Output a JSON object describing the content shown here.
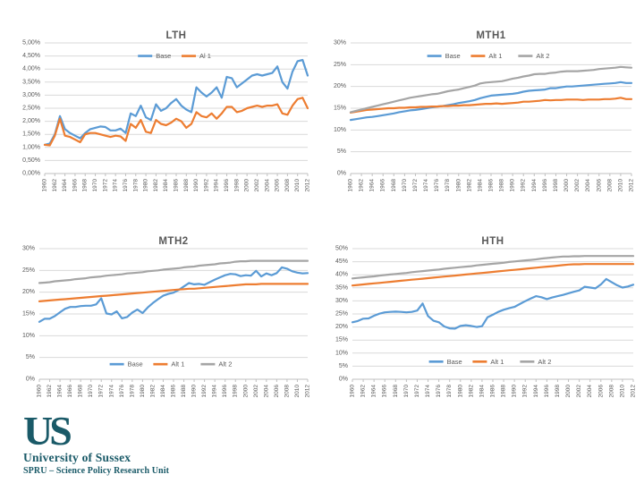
{
  "slide": {
    "background": "#ffffff"
  },
  "colors": {
    "series_base": "#5B9BD5",
    "series_alt1": "#ED7D31",
    "series_alt2": "#A5A5A5",
    "title_text": "#595959",
    "axis_text": "#595959",
    "gridline": "#D9D9D9",
    "axis_line": "#BFBFBF",
    "logo": "#1A5A68"
  },
  "logo": {
    "monogram": "US",
    "institution": "University of Sussex",
    "department": "SPRU – Science Policy Research Unit"
  },
  "chart_data": [
    {
      "id": "lth",
      "type": "line",
      "title": "LTH",
      "x_start": 1960,
      "x_end": 2012,
      "x_tick_labels": [
        "1960",
        "1962",
        "1964",
        "1966",
        "1968",
        "1970",
        "1972",
        "1974",
        "1976",
        "1978",
        "1980",
        "1982",
        "1984",
        "1986",
        "1988",
        "1990",
        "1992",
        "1994",
        "1996",
        "1998",
        "2000",
        "2002",
        "2004",
        "2006",
        "2008",
        "2010",
        "2012"
      ],
      "y_tick_labels": [
        "5,00%",
        "4,50%",
        "4,00%",
        "3,50%",
        "3,00%",
        "2,50%",
        "2,00%",
        "1,50%",
        "1,00%",
        "0,50%",
        "0,00%"
      ],
      "ylim": [
        0,
        5
      ],
      "grid": true,
      "legend_position": "inset-top",
      "legend_frac": 0.1,
      "series": [
        {
          "name": "Base",
          "color": "#5B9BD5",
          "values": [
            1.1,
            1.15,
            1.5,
            2.2,
            1.7,
            1.55,
            1.45,
            1.35,
            1.55,
            1.7,
            1.75,
            1.8,
            1.78,
            1.65,
            1.65,
            1.72,
            1.55,
            2.3,
            2.2,
            2.6,
            2.15,
            2.05,
            2.65,
            2.4,
            2.5,
            2.7,
            2.85,
            2.6,
            2.45,
            2.35,
            3.3,
            3.1,
            2.95,
            3.1,
            3.3,
            2.9,
            3.7,
            3.65,
            3.3,
            3.45,
            3.6,
            3.75,
            3.8,
            3.75,
            3.8,
            3.85,
            4.1,
            3.5,
            3.25,
            3.9,
            4.3,
            4.35,
            3.75
          ]
        },
        {
          "name": "Al 1",
          "color": "#ED7D31",
          "values": [
            1.1,
            1.08,
            1.45,
            2.1,
            1.45,
            1.4,
            1.3,
            1.2,
            1.5,
            1.55,
            1.55,
            1.5,
            1.45,
            1.4,
            1.45,
            1.42,
            1.25,
            1.9,
            1.75,
            2.05,
            1.6,
            1.55,
            2.05,
            1.9,
            1.85,
            1.95,
            2.1,
            2.0,
            1.75,
            1.9,
            2.35,
            2.2,
            2.15,
            2.3,
            2.1,
            2.3,
            2.55,
            2.55,
            2.35,
            2.4,
            2.5,
            2.55,
            2.6,
            2.55,
            2.6,
            2.6,
            2.65,
            2.3,
            2.25,
            2.6,
            2.85,
            2.9,
            2.5
          ]
        }
      ]
    },
    {
      "id": "mth1",
      "type": "line",
      "title": "MTH1",
      "x_start": 1960,
      "x_end": 2012,
      "x_tick_labels": [
        "1960",
        "1962",
        "1964",
        "1966",
        "1968",
        "1970",
        "1972",
        "1974",
        "1976",
        "1978",
        "1980",
        "1982",
        "1984",
        "1986",
        "1988",
        "1990",
        "1992",
        "1994",
        "1996",
        "1998",
        "2000",
        "2002",
        "2004",
        "2006",
        "2008",
        "2010",
        "2012"
      ],
      "y_tick_labels": [
        "30%",
        "25%",
        "20%",
        "15%",
        "10%",
        "5%",
        "0%"
      ],
      "ylim": [
        0,
        30
      ],
      "grid": true,
      "legend_position": "inset-top",
      "legend_frac": 0.1,
      "series": [
        {
          "name": "Base",
          "color": "#5B9BD5",
          "values": [
            12.3,
            12.5,
            12.7,
            12.9,
            13.0,
            13.2,
            13.4,
            13.6,
            13.8,
            14.1,
            14.3,
            14.5,
            14.6,
            14.8,
            15.0,
            15.2,
            15.4,
            15.5,
            15.7,
            15.9,
            16.2,
            16.4,
            16.6,
            16.9,
            17.3,
            17.6,
            17.9,
            18.0,
            18.1,
            18.2,
            18.3,
            18.5,
            18.8,
            19.0,
            19.1,
            19.2,
            19.3,
            19.6,
            19.6,
            19.8,
            20.0,
            20.0,
            20.1,
            20.2,
            20.3,
            20.4,
            20.5,
            20.6,
            20.7,
            20.8,
            21.0,
            20.8,
            20.8
          ]
        },
        {
          "name": "Alt 1",
          "color": "#ED7D31",
          "values": [
            14.0,
            14.2,
            14.4,
            14.6,
            14.7,
            14.8,
            14.9,
            15.0,
            15.0,
            15.1,
            15.1,
            15.2,
            15.2,
            15.3,
            15.3,
            15.4,
            15.4,
            15.5,
            15.5,
            15.6,
            15.6,
            15.7,
            15.7,
            15.8,
            15.9,
            16.0,
            16.0,
            16.1,
            16.0,
            16.1,
            16.2,
            16.3,
            16.5,
            16.5,
            16.6,
            16.7,
            16.9,
            16.8,
            16.9,
            16.9,
            17.0,
            17.0,
            17.0,
            16.9,
            17.0,
            17.0,
            17.0,
            17.1,
            17.1,
            17.2,
            17.4,
            17.1,
            17.1
          ]
        },
        {
          "name": "Alt 2",
          "color": "#A5A5A5",
          "values": [
            14.1,
            14.4,
            14.7,
            15.0,
            15.3,
            15.6,
            15.9,
            16.2,
            16.5,
            16.8,
            17.1,
            17.4,
            17.6,
            17.8,
            18.0,
            18.2,
            18.3,
            18.6,
            18.9,
            19.1,
            19.3,
            19.6,
            19.9,
            20.2,
            20.7,
            20.9,
            21.0,
            21.1,
            21.2,
            21.5,
            21.8,
            22.0,
            22.3,
            22.5,
            22.8,
            22.9,
            22.9,
            23.1,
            23.2,
            23.4,
            23.5,
            23.5,
            23.5,
            23.6,
            23.7,
            23.8,
            24.0,
            24.1,
            24.2,
            24.3,
            24.5,
            24.4,
            24.3
          ]
        }
      ]
    },
    {
      "id": "mth2",
      "type": "line",
      "title": "MTH2",
      "x_start": 1960,
      "x_end": 2012,
      "x_tick_labels": [
        "1960",
        "1962",
        "1964",
        "1966",
        "1968",
        "1970",
        "1972",
        "1974",
        "1976",
        "1978",
        "1980",
        "1982",
        "1984",
        "1986",
        "1988",
        "1990",
        "1992",
        "1994",
        "1996",
        "1998",
        "2000",
        "2002",
        "2004",
        "2006",
        "2008",
        "2010",
        "2012"
      ],
      "y_tick_labels": [
        "30%",
        "25%",
        "20%",
        "15%",
        "10%",
        "5%",
        "0%"
      ],
      "ylim": [
        0,
        30
      ],
      "grid": true,
      "legend_position": "inset-bottom",
      "legend_frac": 0.885,
      "series": [
        {
          "name": "Base",
          "color": "#5B9BD5",
          "values": [
            13.2,
            13.9,
            13.9,
            14.5,
            15.4,
            16.2,
            16.6,
            16.6,
            16.8,
            16.9,
            16.9,
            17.2,
            18.6,
            15.1,
            14.9,
            15.6,
            14.0,
            14.3,
            15.3,
            16.0,
            15.2,
            16.5,
            17.5,
            18.4,
            19.2,
            19.6,
            19.9,
            20.5,
            21.3,
            22.1,
            21.8,
            21.9,
            21.7,
            22.3,
            22.9,
            23.4,
            23.9,
            24.2,
            24.1,
            23.7,
            23.9,
            23.8,
            24.9,
            23.6,
            24.3,
            23.9,
            24.4,
            25.7,
            25.4,
            24.8,
            24.5,
            24.3,
            24.4
          ]
        },
        {
          "name": "Alt 1",
          "color": "#ED7D31",
          "values": [
            17.9,
            18.0,
            18.1,
            18.2,
            18.3,
            18.4,
            18.5,
            18.6,
            18.7,
            18.8,
            18.9,
            19.0,
            19.1,
            19.2,
            19.3,
            19.4,
            19.5,
            19.6,
            19.7,
            19.8,
            19.9,
            20.0,
            20.1,
            20.2,
            20.3,
            20.4,
            20.5,
            20.6,
            20.7,
            20.8,
            20.8,
            20.9,
            21.0,
            21.1,
            21.2,
            21.3,
            21.4,
            21.5,
            21.6,
            21.7,
            21.8,
            21.8,
            21.8,
            21.9,
            21.9,
            21.9,
            21.9,
            21.9,
            21.9,
            21.9,
            21.9,
            21.9,
            21.9
          ]
        },
        {
          "name": "Alt 2",
          "color": "#A5A5A5",
          "values": [
            22.1,
            22.2,
            22.3,
            22.5,
            22.6,
            22.7,
            22.8,
            23.0,
            23.1,
            23.2,
            23.4,
            23.5,
            23.6,
            23.8,
            23.9,
            24.0,
            24.1,
            24.3,
            24.4,
            24.5,
            24.6,
            24.8,
            24.9,
            25.0,
            25.2,
            25.3,
            25.4,
            25.5,
            25.7,
            25.8,
            25.9,
            26.1,
            26.2,
            26.3,
            26.4,
            26.6,
            26.7,
            26.8,
            27.0,
            27.1,
            27.1,
            27.2,
            27.2,
            27.2,
            27.2,
            27.2,
            27.2,
            27.2,
            27.2,
            27.2,
            27.2,
            27.2,
            27.2
          ]
        }
      ]
    },
    {
      "id": "hth",
      "type": "line",
      "title": "HTH",
      "x_start": 1960,
      "x_end": 2012,
      "x_tick_labels": [
        "1960",
        "1962",
        "1964",
        "1966",
        "1968",
        "1970",
        "1972",
        "1974",
        "1976",
        "1978",
        "1980",
        "1982",
        "1984",
        "1986",
        "1988",
        "1990",
        "1992",
        "1994",
        "1996",
        "1998",
        "2000",
        "2002",
        "2004",
        "2006",
        "2008",
        "2010",
        "2012"
      ],
      "y_tick_labels": [
        "50%",
        "45%",
        "40%",
        "35%",
        "30%",
        "25%",
        "20%",
        "15%",
        "10%",
        "5%",
        "0%"
      ],
      "ylim": [
        0,
        50
      ],
      "grid": true,
      "legend_position": "inset-bottom",
      "legend_frac": 0.865,
      "series": [
        {
          "name": "Base",
          "color": "#5B9BD5",
          "values": [
            21.8,
            22.3,
            23.2,
            23.3,
            24.3,
            25.1,
            25.6,
            25.8,
            25.9,
            25.8,
            25.6,
            25.8,
            26.3,
            29.0,
            24.2,
            22.4,
            21.8,
            20.2,
            19.5,
            19.4,
            20.4,
            20.7,
            20.4,
            20.0,
            20.3,
            23.7,
            24.7,
            25.8,
            26.6,
            27.2,
            27.7,
            28.8,
            29.9,
            30.9,
            31.8,
            31.4,
            30.7,
            31.3,
            31.8,
            32.3,
            32.9,
            33.5,
            34.0,
            35.4,
            35.1,
            34.8,
            36.3,
            38.4,
            37.2,
            36.0,
            35.1,
            35.5,
            36.2
          ]
        },
        {
          "name": "Alt 1",
          "color": "#ED7D31",
          "values": [
            35.9,
            36.1,
            36.3,
            36.5,
            36.7,
            36.9,
            37.1,
            37.3,
            37.5,
            37.7,
            37.9,
            38.1,
            38.3,
            38.5,
            38.7,
            38.9,
            39.1,
            39.3,
            39.5,
            39.7,
            39.9,
            40.1,
            40.3,
            40.5,
            40.7,
            40.9,
            41.1,
            41.3,
            41.5,
            41.7,
            41.9,
            42.1,
            42.3,
            42.5,
            42.7,
            42.9,
            43.1,
            43.3,
            43.5,
            43.7,
            43.9,
            44.0,
            44.0,
            44.1,
            44.1,
            44.1,
            44.1,
            44.1,
            44.1,
            44.1,
            44.1,
            44.1,
            44.1
          ]
        },
        {
          "name": "Alt 2",
          "color": "#A5A5A5",
          "values": [
            38.6,
            38.8,
            39.0,
            39.2,
            39.4,
            39.7,
            39.9,
            40.1,
            40.3,
            40.5,
            40.7,
            41.0,
            41.2,
            41.4,
            41.6,
            41.8,
            42.0,
            42.3,
            42.5,
            42.7,
            42.9,
            43.1,
            43.3,
            43.6,
            43.8,
            44.0,
            44.2,
            44.4,
            44.6,
            44.9,
            45.1,
            45.3,
            45.5,
            45.7,
            45.9,
            46.2,
            46.4,
            46.6,
            46.8,
            47.0,
            47.0,
            47.1,
            47.1,
            47.2,
            47.2,
            47.2,
            47.2,
            47.2,
            47.2,
            47.2,
            47.2,
            47.2,
            47.2
          ]
        }
      ]
    }
  ]
}
